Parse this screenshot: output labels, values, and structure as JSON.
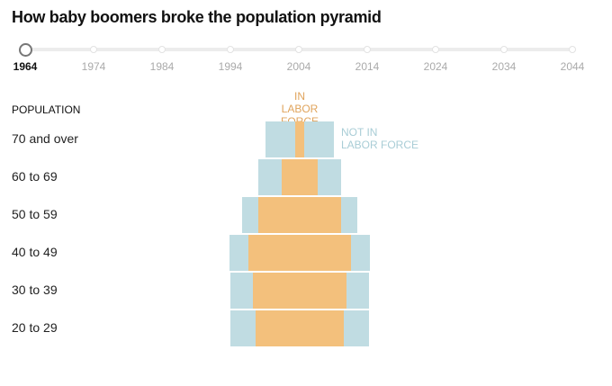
{
  "title": "How baby boomers broke the population pyramid",
  "timeline": {
    "years": [
      "1964",
      "1974",
      "1984",
      "1994",
      "2004",
      "2014",
      "2024",
      "2034",
      "2044"
    ],
    "selected_index": 0
  },
  "chart_data": {
    "type": "bar",
    "subtype": "population-pyramid",
    "year": "1964",
    "y_axis_title": "POPULATION",
    "categories": [
      "70 and over",
      "60 to 69",
      "50 to 59",
      "40 to 49",
      "30 to 39",
      "20 to 29"
    ],
    "series": [
      {
        "name": "IN LABOR FORCE",
        "color": "#f3c07c",
        "values": [
          1.5,
          6.2,
          14.2,
          17.6,
          16.0,
          15.1
        ]
      },
      {
        "name": "NOT IN LABOR FORCE",
        "color": "#c0dce2",
        "values": [
          10.2,
          8.0,
          5.5,
          6.4,
          7.7,
          8.6
        ]
      }
    ],
    "units": "approx. millions (estimated, no axis shown)",
    "legend": {
      "in_line1": "IN",
      "in_line2": "LABOR FORCE",
      "not_line1": "NOT IN",
      "not_line2": "LABOR FORCE",
      "in_color": "#e0a45c",
      "not_color": "#a9cdd6"
    }
  }
}
